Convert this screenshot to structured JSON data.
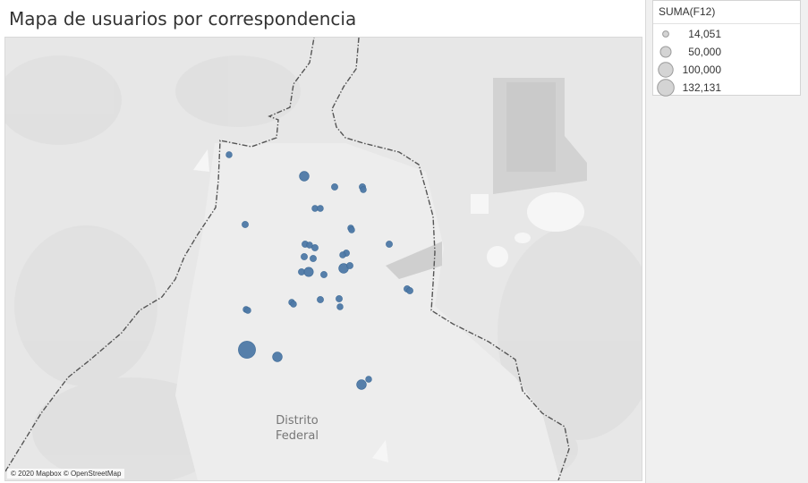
{
  "title": "Mapa de usuarios por correspondencia",
  "map": {
    "attribution": "© 2020 Mapbox © OpenStreetMap",
    "region_label_line1": "Distrito",
    "region_label_line2": "Federal",
    "marker_color": "#4e79a7",
    "boundary_color": "#555555"
  },
  "legend": {
    "title": "SUMA(F12)",
    "items": [
      {
        "label": "14,051",
        "value": 14051
      },
      {
        "label": "50,000",
        "value": 50000
      },
      {
        "label": "100,000",
        "value": 100000
      },
      {
        "label": "132,131",
        "value": 132131
      }
    ],
    "symbol_fill": "#d4d4d4",
    "symbol_stroke": "#9a9a9a"
  }
}
